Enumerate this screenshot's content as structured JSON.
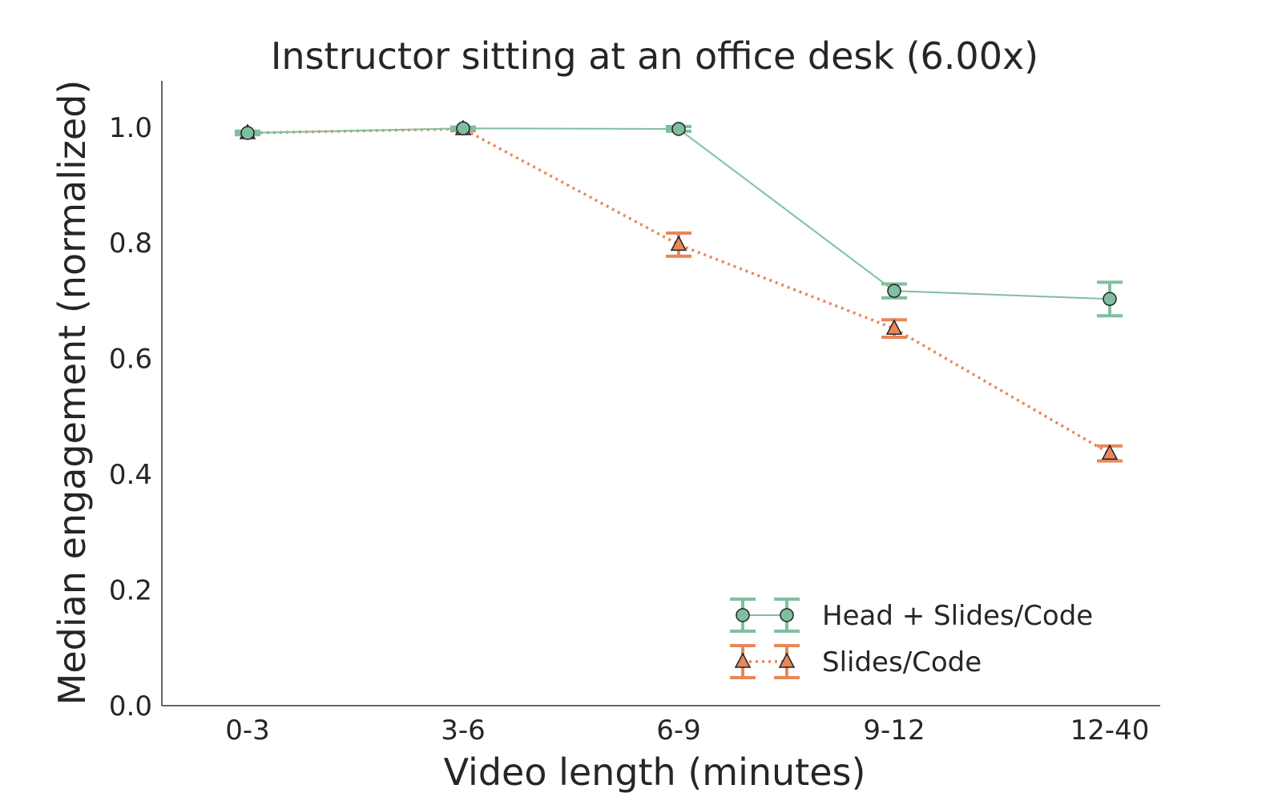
{
  "chart_data": {
    "type": "line",
    "title": "Instructor sitting at an office desk (6.00x)",
    "xlabel": "Video length (minutes)",
    "ylabel": "Median engagement (normalized)",
    "categories": [
      "0-3",
      "3-6",
      "6-9",
      "9-12",
      "12-40"
    ],
    "ylim": [
      0.0,
      1.08
    ],
    "yticks": [
      0.0,
      0.2,
      0.4,
      0.6,
      0.8,
      1.0
    ],
    "ytick_labels": [
      "0.0",
      "0.2",
      "0.4",
      "0.6",
      "0.8",
      "1.0"
    ],
    "grid": false,
    "legend_position": "bottom-right",
    "series": [
      {
        "name": "Head + Slides/Code",
        "color": "#7fbf9f",
        "marker": "circle",
        "line_style": "solid",
        "values": [
          0.99,
          0.998,
          0.997,
          0.717,
          0.703
        ],
        "err": [
          0.003,
          0.002,
          0.004,
          0.012,
          0.029
        ]
      },
      {
        "name": "Slides/Code",
        "color": "#e8875a",
        "marker": "triangle",
        "line_style": "dotted",
        "values": [
          0.99,
          0.997,
          0.797,
          0.652,
          0.436
        ],
        "err": [
          0.003,
          0.003,
          0.02,
          0.015,
          0.013
        ]
      }
    ]
  }
}
